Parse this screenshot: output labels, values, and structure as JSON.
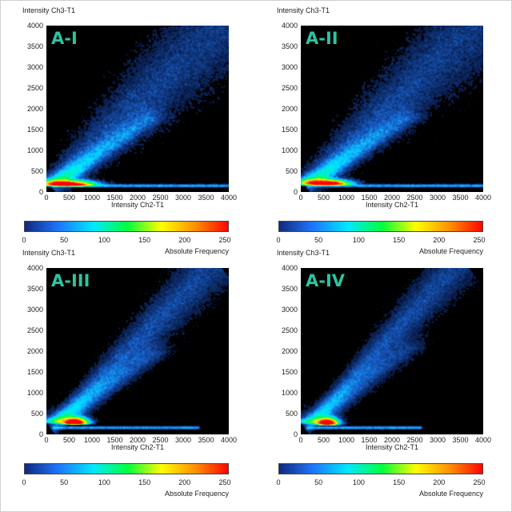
{
  "panels": [
    {
      "tag": "A-I",
      "ylabel": "Intensity Ch3-T1",
      "xlabel": "Intensity Ch2-T1",
      "colorbar_label": "Absolute Frequency"
    },
    {
      "tag": "A-II",
      "ylabel": "Intensity Ch3-T1",
      "xlabel": "Intensity Ch2-T1",
      "colorbar_label": "Absolute Frequency"
    },
    {
      "tag": "A-III",
      "ylabel": "Intensity Ch3-T1",
      "xlabel": "Intensity Ch2-T1",
      "colorbar_label": "Absolute Frequency"
    },
    {
      "tag": "A-IV",
      "ylabel": "Intensity Ch3-T1",
      "xlabel": "Intensity Ch2-T1",
      "colorbar_label": "Absolute Frequency"
    }
  ],
  "chart_data": [
    {
      "type": "heatmap",
      "title": "A-I",
      "xlabel": "Intensity Ch2-T1",
      "ylabel": "Intensity Ch3-T1",
      "xlim": [
        0,
        4000
      ],
      "ylim": [
        0,
        4000
      ],
      "xticks": [
        0,
        500,
        1000,
        1500,
        2000,
        2500,
        3000,
        3500,
        4000
      ],
      "yticks": [
        0,
        500,
        1000,
        1500,
        2000,
        2500,
        3000,
        3500,
        4000
      ],
      "colorbar": {
        "label": "Absolute Frequency",
        "min": 0,
        "max": 255,
        "ticks": [
          0,
          50,
          100,
          150,
          200,
          250
        ],
        "colors": [
          "#102a80",
          "#1e78ff",
          "#00e8ff",
          "#00ff40",
          "#ffff00",
          "#ff9000",
          "#ff0000"
        ]
      },
      "density": {
        "peak_x": 480,
        "peak_y": 170,
        "hotspot_spread": [
          300,
          70
        ],
        "cloud_slope": 1.05,
        "cloud_extent": 4000,
        "cloud_spread": 700,
        "baseline_y": 150,
        "baseline_extent": 4000
      },
      "grid": false
    },
    {
      "type": "heatmap",
      "title": "A-II",
      "xlabel": "Intensity Ch2-T1",
      "ylabel": "Intensity Ch3-T1",
      "xlim": [
        0,
        4000
      ],
      "ylim": [
        0,
        4000
      ],
      "xticks": [
        0,
        500,
        1000,
        1500,
        2000,
        2500,
        3000,
        3500,
        4000
      ],
      "yticks": [
        0,
        500,
        1000,
        1500,
        2000,
        2500,
        3000,
        3500,
        4000
      ],
      "colorbar": {
        "label": "Absolute Frequency",
        "min": 0,
        "max": 255,
        "ticks": [
          0,
          50,
          100,
          150,
          200,
          250
        ],
        "colors": [
          "#102a80",
          "#1e78ff",
          "#00e8ff",
          "#00ff40",
          "#ffff00",
          "#ff9000",
          "#ff0000"
        ]
      },
      "density": {
        "peak_x": 560,
        "peak_y": 190,
        "hotspot_spread": [
          260,
          70
        ],
        "cloud_slope": 1.05,
        "cloud_extent": 4000,
        "cloud_spread": 650,
        "baseline_y": 150,
        "baseline_extent": 4000
      },
      "grid": false
    },
    {
      "type": "heatmap",
      "title": "A-III",
      "xlabel": "Intensity Ch2-T1",
      "ylabel": "Intensity Ch3-T1",
      "xlim": [
        0,
        4000
      ],
      "ylim": [
        0,
        4000
      ],
      "xticks": [
        0,
        500,
        1000,
        1500,
        2000,
        2500,
        3000,
        3500,
        4000
      ],
      "yticks": [
        0,
        500,
        1000,
        1500,
        2000,
        2500,
        3000,
        3500,
        4000
      ],
      "colorbar": {
        "label": "Absolute Frequency",
        "min": 0,
        "max": 255,
        "ticks": [
          0,
          50,
          100,
          150,
          200,
          250
        ],
        "colors": [
          "#102a80",
          "#1e78ff",
          "#00e8ff",
          "#00ff40",
          "#ffff00",
          "#ff9000",
          "#ff0000"
        ]
      },
      "density": {
        "peak_x": 620,
        "peak_y": 270,
        "hotspot_spread": [
          150,
          90
        ],
        "cloud_slope": 1.12,
        "cloud_extent": 3600,
        "cloud_spread": 380,
        "baseline_y": 160,
        "baseline_extent": 3200
      },
      "grid": false
    },
    {
      "type": "heatmap",
      "title": "A-IV",
      "xlabel": "Intensity Ch2-T1",
      "ylabel": "Intensity Ch3-T1",
      "xlim": [
        0,
        4000
      ],
      "ylim": [
        0,
        4000
      ],
      "xticks": [
        0,
        500,
        1000,
        1500,
        2000,
        2500,
        3000,
        3500,
        4000
      ],
      "yticks": [
        0,
        500,
        1000,
        1500,
        2000,
        2500,
        3000,
        3500,
        4000
      ],
      "colorbar": {
        "label": "Absolute Frequency",
        "min": 0,
        "max": 255,
        "ticks": [
          0,
          50,
          100,
          150,
          200,
          250
        ],
        "colors": [
          "#102a80",
          "#1e78ff",
          "#00e8ff",
          "#00ff40",
          "#ffff00",
          "#ff9000",
          "#ff0000"
        ]
      },
      "density": {
        "peak_x": 580,
        "peak_y": 260,
        "hotspot_spread": [
          130,
          90
        ],
        "cloud_slope": 1.2,
        "cloud_extent": 3400,
        "cloud_spread": 330,
        "baseline_y": 160,
        "baseline_extent": 2500
      },
      "grid": false
    }
  ]
}
